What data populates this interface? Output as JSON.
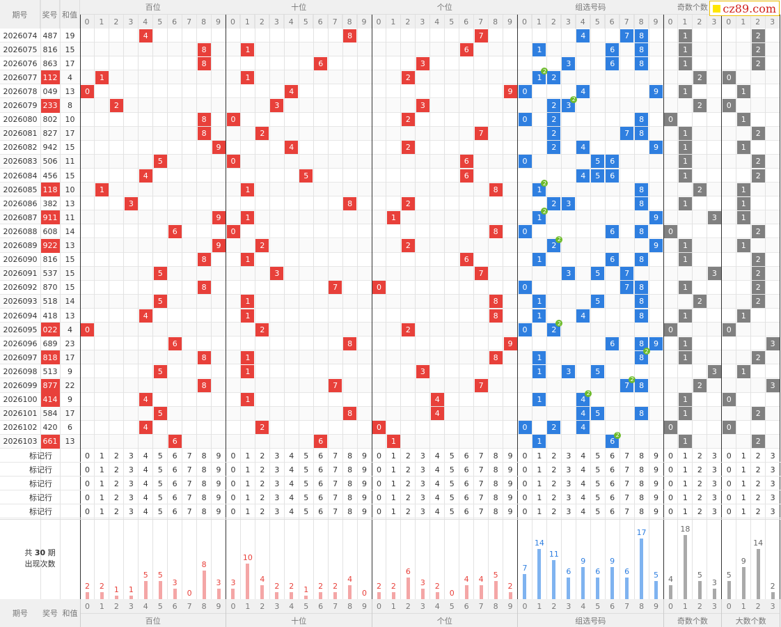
{
  "header": {
    "issue": "期号",
    "draw": "奖号",
    "sum": "和值",
    "groups": [
      "百位",
      "十位",
      "个位",
      "组选号码",
      "奇数个数",
      "大数个数"
    ],
    "digits": [
      "0",
      "1",
      "2",
      "3",
      "4",
      "5",
      "6",
      "7",
      "8",
      "9"
    ],
    "count_digits": [
      "0",
      "1",
      "2",
      "3"
    ]
  },
  "logo": "cz89.com",
  "colors": {
    "red": "#e8403a",
    "blue": "#2f7fe0",
    "gray": "#808080",
    "badge": "#6dbb2b",
    "bar_red": "#f4a6a6",
    "bar_blue": "#7fb3f0",
    "bar_gray": "#a9a9a9"
  },
  "rows": [
    {
      "issue": "2026074",
      "draw": "487",
      "sum": "19",
      "hl": false,
      "odd": "1",
      "big": "2"
    },
    {
      "issue": "2026075",
      "draw": "816",
      "sum": "15",
      "hl": false,
      "odd": "1",
      "big": "2"
    },
    {
      "issue": "2026076",
      "draw": "863",
      "sum": "17",
      "hl": false,
      "odd": "1",
      "big": "2"
    },
    {
      "issue": "2026077",
      "draw": "112",
      "sum": "4",
      "hl": true,
      "odd": "2",
      "big": "0"
    },
    {
      "issue": "2026078",
      "draw": "049",
      "sum": "13",
      "hl": false,
      "odd": "1",
      "big": "1"
    },
    {
      "issue": "2026079",
      "draw": "233",
      "sum": "8",
      "hl": true,
      "odd": "2",
      "big": "0"
    },
    {
      "issue": "2026080",
      "draw": "802",
      "sum": "10",
      "hl": false,
      "odd": "0",
      "big": "1"
    },
    {
      "issue": "2026081",
      "draw": "827",
      "sum": "17",
      "hl": false,
      "odd": "1",
      "big": "2"
    },
    {
      "issue": "2026082",
      "draw": "942",
      "sum": "15",
      "hl": false,
      "odd": "1",
      "big": "1"
    },
    {
      "issue": "2026083",
      "draw": "506",
      "sum": "11",
      "hl": false,
      "odd": "1",
      "big": "2"
    },
    {
      "issue": "2026084",
      "draw": "456",
      "sum": "15",
      "hl": false,
      "odd": "1",
      "big": "2"
    },
    {
      "issue": "2026085",
      "draw": "118",
      "sum": "10",
      "hl": true,
      "odd": "2",
      "big": "1"
    },
    {
      "issue": "2026086",
      "draw": "382",
      "sum": "13",
      "hl": false,
      "odd": "1",
      "big": "1"
    },
    {
      "issue": "2026087",
      "draw": "911",
      "sum": "11",
      "hl": true,
      "odd": "3",
      "big": "1"
    },
    {
      "issue": "2026088",
      "draw": "608",
      "sum": "14",
      "hl": false,
      "odd": "0",
      "big": "2"
    },
    {
      "issue": "2026089",
      "draw": "922",
      "sum": "13",
      "hl": true,
      "odd": "1",
      "big": "1"
    },
    {
      "issue": "2026090",
      "draw": "816",
      "sum": "15",
      "hl": false,
      "odd": "1",
      "big": "2"
    },
    {
      "issue": "2026091",
      "draw": "537",
      "sum": "15",
      "hl": false,
      "odd": "3",
      "big": "2"
    },
    {
      "issue": "2026092",
      "draw": "870",
      "sum": "15",
      "hl": false,
      "odd": "1",
      "big": "2"
    },
    {
      "issue": "2026093",
      "draw": "518",
      "sum": "14",
      "hl": false,
      "odd": "2",
      "big": "2"
    },
    {
      "issue": "2026094",
      "draw": "418",
      "sum": "13",
      "hl": false,
      "odd": "1",
      "big": "1"
    },
    {
      "issue": "2026095",
      "draw": "022",
      "sum": "4",
      "hl": true,
      "odd": "0",
      "big": "0"
    },
    {
      "issue": "2026096",
      "draw": "689",
      "sum": "23",
      "hl": false,
      "odd": "1",
      "big": "3"
    },
    {
      "issue": "2026097",
      "draw": "818",
      "sum": "17",
      "hl": true,
      "odd": "1",
      "big": "2"
    },
    {
      "issue": "2026098",
      "draw": "513",
      "sum": "9",
      "hl": false,
      "odd": "3",
      "big": "1"
    },
    {
      "issue": "2026099",
      "draw": "877",
      "sum": "22",
      "hl": true,
      "odd": "2",
      "big": "3"
    },
    {
      "issue": "2026100",
      "draw": "414",
      "sum": "9",
      "hl": true,
      "odd": "1",
      "big": "0"
    },
    {
      "issue": "2026101",
      "draw": "584",
      "sum": "17",
      "hl": false,
      "odd": "1",
      "big": "2"
    },
    {
      "issue": "2026102",
      "draw": "420",
      "sum": "6",
      "hl": false,
      "odd": "0",
      "big": "0"
    },
    {
      "issue": "2026103",
      "draw": "661",
      "sum": "13",
      "hl": true,
      "odd": "1",
      "big": "2"
    }
  ],
  "mark_label": "标记行",
  "stats_label_line1": "共 ",
  "stats_label_num": "30",
  "stats_label_line1_end": " 期",
  "stats_label_line2": "出现次数",
  "counts": {
    "hundreds": [
      2,
      2,
      1,
      1,
      5,
      5,
      3,
      0,
      8,
      3
    ],
    "tens": [
      3,
      10,
      4,
      2,
      2,
      1,
      2,
      2,
      4,
      0
    ],
    "units": [
      2,
      2,
      6,
      3,
      2,
      0,
      4,
      4,
      5,
      2
    ],
    "group": [
      7,
      14,
      11,
      6,
      9,
      6,
      9,
      6,
      17,
      5
    ],
    "odd": [
      4,
      18,
      5,
      3
    ],
    "big": [
      5,
      9,
      14,
      2
    ]
  },
  "badge_text": "2"
}
